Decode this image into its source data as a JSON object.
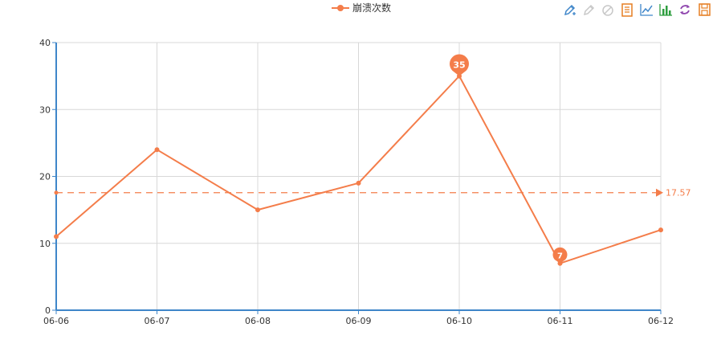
{
  "chart_data": {
    "type": "line",
    "categories": [
      "06-06",
      "06-07",
      "06-08",
      "06-09",
      "06-10",
      "06-11",
      "06-12"
    ],
    "series": [
      {
        "name": "崩溃次数",
        "values": [
          11,
          24,
          15,
          19,
          35,
          7,
          12
        ],
        "color": "#f47d4a"
      }
    ],
    "ylim": [
      0,
      40
    ],
    "yticks": [
      0,
      10,
      20,
      30,
      40
    ],
    "grid": true,
    "legend_position": "top-center",
    "mark_points": [
      {
        "label": "35",
        "category": "06-10",
        "value": 35,
        "kind": "max"
      },
      {
        "label": "7",
        "category": "06-11",
        "value": 7,
        "kind": "min"
      }
    ],
    "mark_line": {
      "label": "17.57",
      "value": 17.57,
      "kind": "average"
    },
    "axis_color": "#3f86c9",
    "grid_color": "#d8d8d8"
  },
  "toolbox": {
    "tools": [
      {
        "name": "mark-icon",
        "color": "#3f86c9"
      },
      {
        "name": "mark-undo-icon",
        "color": "#c7c7c7"
      },
      {
        "name": "mark-clear-icon",
        "color": "#c7c7c7"
      },
      {
        "name": "data-view-icon",
        "color": "#e67e22"
      },
      {
        "name": "line-chart-icon",
        "color": "#3f86c9"
      },
      {
        "name": "bar-chart-icon",
        "color": "#2e9e3f"
      },
      {
        "name": "restore-icon",
        "color": "#8e44ad"
      },
      {
        "name": "save-image-icon",
        "color": "#e67e22"
      }
    ]
  }
}
